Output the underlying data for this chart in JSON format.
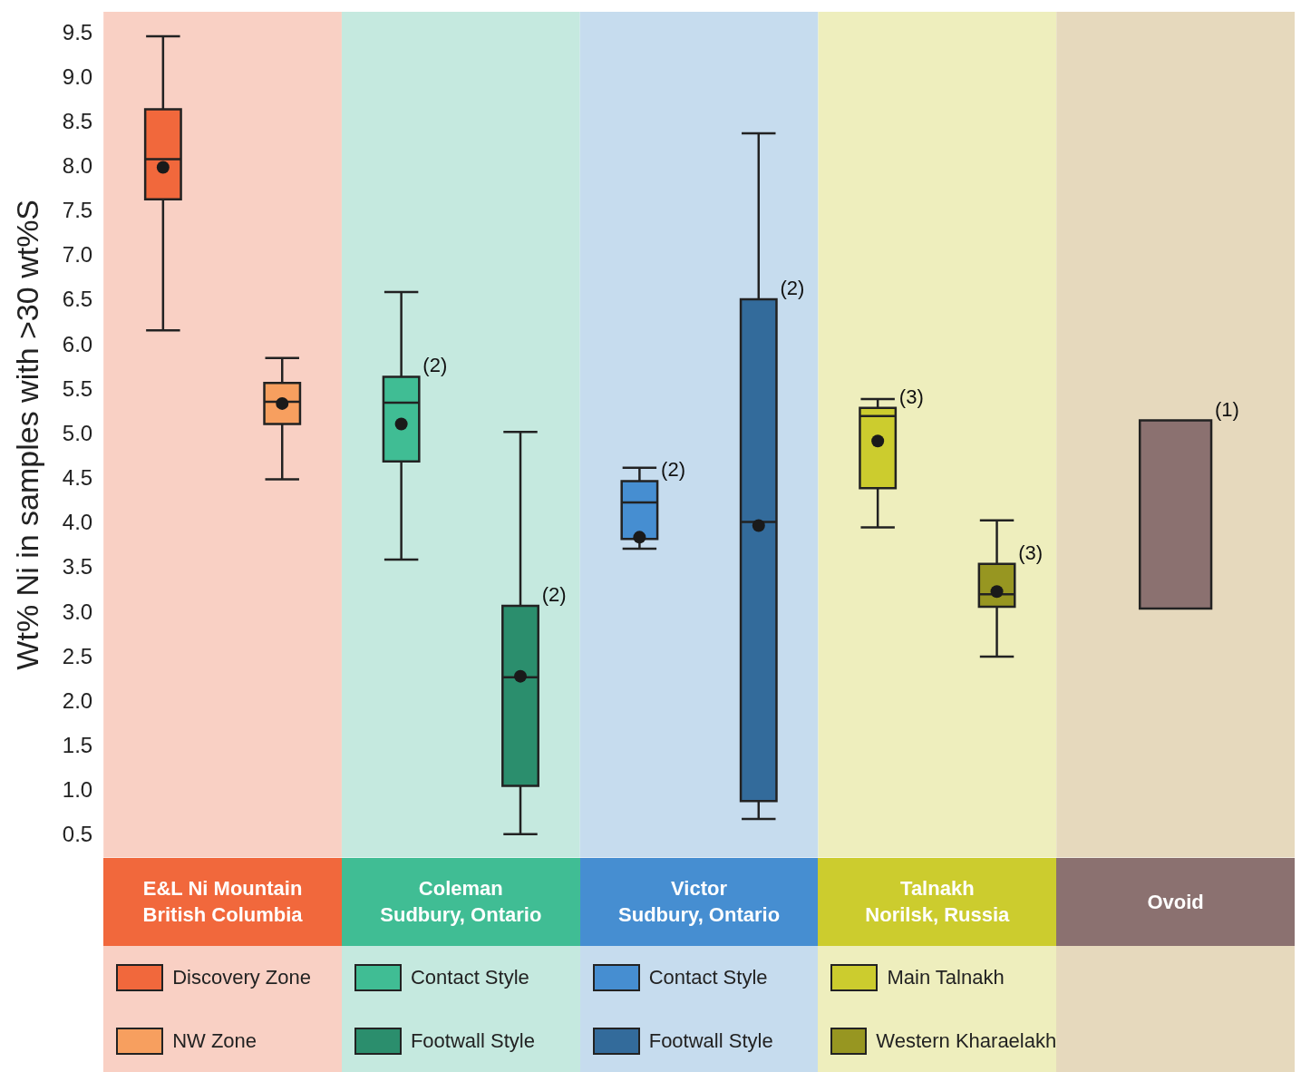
{
  "chart_data": {
    "type": "box",
    "ylabel": "Wt% Ni in samples with >30 wt%S",
    "categories": [
      "E&L Ni Mountain\nBritish Columbia",
      "Coleman\nSudbury, Ontario",
      "Victor\nSudbury, Ontario",
      "Talnakh\nNorilsk, Russia",
      "Ovoid"
    ],
    "series": [
      {
        "name": "Discovery Zone",
        "color": "#f1683c",
        "boxes": [
          {
            "low": 6.17,
            "q1": 7.64,
            "median": 8.09,
            "q3": 8.65,
            "high": 9.47,
            "mean": 8.0
          },
          null,
          null,
          null,
          null
        ]
      },
      {
        "name": "NW Zone",
        "color": "#f79f5f",
        "boxes": [
          {
            "low": 4.5,
            "q1": 5.12,
            "median": 5.37,
            "q3": 5.58,
            "high": 5.86,
            "mean": 5.35
          },
          null,
          null,
          null,
          null
        ]
      },
      {
        "name": "Contact Style",
        "color": "#40bd94",
        "boxes": [
          null,
          {
            "low": 3.6,
            "q1": 4.7,
            "median": 5.36,
            "q3": 5.65,
            "high": 6.6,
            "mean": 5.12
          },
          null,
          null,
          null
        ]
      },
      {
        "name": "Footwall Style",
        "color": "#2b8e6d",
        "boxes": [
          null,
          {
            "low": 0.52,
            "q1": 1.06,
            "median": 2.28,
            "q3": 3.08,
            "high": 5.03,
            "mean": 2.29
          },
          null,
          null,
          null
        ]
      },
      {
        "name": "Contact Style",
        "color": "#468ed1",
        "boxes": [
          null,
          null,
          {
            "low": 3.72,
            "q1": 3.83,
            "median": 4.24,
            "q3": 4.48,
            "high": 4.63,
            "mean": 3.85
          },
          null,
          null
        ]
      },
      {
        "name": "Footwall Style",
        "color": "#336b9b",
        "boxes": [
          null,
          null,
          {
            "low": 0.69,
            "q1": 0.89,
            "median": 4.02,
            "q3": 6.52,
            "high": 8.38,
            "mean": 3.98
          },
          null,
          null
        ]
      },
      {
        "name": "Main Talnakh",
        "color": "#cccc2e",
        "boxes": [
          null,
          null,
          null,
          {
            "low": 3.96,
            "q1": 4.4,
            "median": 5.21,
            "q3": 5.3,
            "high": 5.4,
            "mean": 4.93
          },
          null
        ]
      },
      {
        "name": "Western Kharaelakh",
        "color": "#979621",
        "boxes": [
          null,
          null,
          null,
          {
            "low": 2.51,
            "q1": 3.07,
            "median": 3.21,
            "q3": 3.55,
            "high": 4.04,
            "mean": 3.24
          },
          null
        ]
      },
      {
        "color": "#8b7170",
        "boxes": [
          null,
          null,
          null,
          null,
          {
            "low": 3.05,
            "q1": 3.05,
            "median": null,
            "q3": 5.16,
            "high": 5.16
          }
        ]
      }
    ],
    "bands": [
      {
        "axis": "x",
        "from": "E&L Ni Mountain\nBritish Columbia",
        "to": "E&L Ni Mountain\nBritish Columbia",
        "color": "#f9d0c4"
      },
      {
        "axis": "x",
        "from": "Coleman\nSudbury, Ontario",
        "to": "Coleman\nSudbury, Ontario",
        "color": "#c5e9df"
      },
      {
        "axis": "x",
        "from": "Victor\nSudbury, Ontario",
        "to": "Victor\nSudbury, Ontario",
        "color": "#c6dcee"
      },
      {
        "axis": "x",
        "from": "Talnakh\nNorilsk, Russia",
        "to": "Talnakh\nNorilsk, Russia",
        "color": "#eeeebd"
      },
      {
        "axis": "x",
        "from": "Ovoid",
        "to": "Ovoid",
        "color": "#e6d9bd"
      }
    ],
    "annotations": [
      "(2)",
      "(2)",
      "(2)",
      "(2)",
      "(3)",
      "(3)",
      "(1)"
    ],
    "ylim": [
      0.5,
      9.5
    ],
    "yticks": [
      0.5,
      {
        "value": 1,
        "label": "1.0"
      },
      1.5,
      {
        "value": 2,
        "label": "2.0"
      },
      2.5,
      {
        "value": 3,
        "label": "3.0"
      },
      3.5,
      {
        "value": 4,
        "label": "4.0"
      },
      4.5,
      {
        "value": 5,
        "label": "5.0"
      },
      5.5,
      {
        "value": 6,
        "label": "6.0"
      },
      6.5,
      {
        "value": 7,
        "label": "7.0"
      },
      7.5,
      {
        "value": 8,
        "label": "8.0"
      },
      8.5,
      {
        "value": 9,
        "label": "9.0"
      },
      9.5
    ],
    "grid": false,
    "legend": "bottom",
    "marker": "circle"
  }
}
